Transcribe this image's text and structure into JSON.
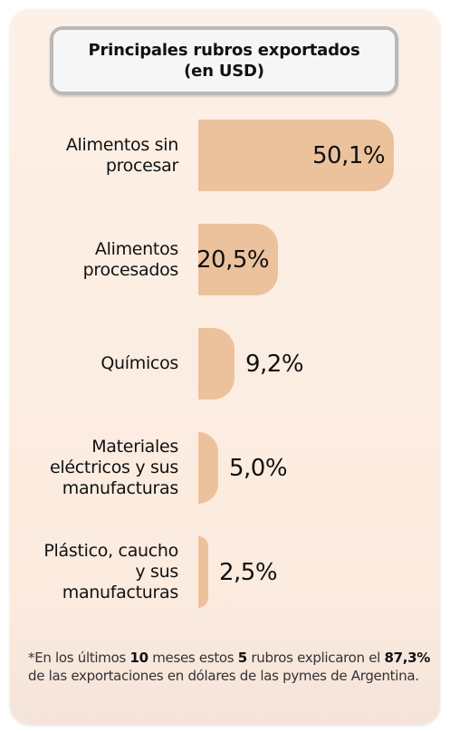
{
  "title": {
    "line1": "Principales rubros exportados",
    "line2": "(en USD)"
  },
  "chart_data": {
    "type": "bar",
    "orientation": "horizontal",
    "categories": [
      [
        "Alimentos sin",
        "procesar"
      ],
      [
        "Alimentos",
        "procesados"
      ],
      [
        "Químicos"
      ],
      [
        "Materiales",
        "eléctricos y sus",
        "manufacturas"
      ],
      [
        "Plástico, caucho",
        "y sus",
        "manufacturas"
      ]
    ],
    "values": [
      50.1,
      20.5,
      9.2,
      5.0,
      2.5
    ],
    "value_labels": [
      "50,1%",
      "20,5%",
      "9,2%",
      "5,0%",
      "2,5%"
    ],
    "value_label_placement": [
      "inside",
      "inside",
      "outside",
      "outside",
      "outside"
    ],
    "unit": "%",
    "xlim": [
      0,
      50.1
    ],
    "grid": false,
    "legend": "none",
    "bar_color": "#ecc29d"
  },
  "footnote": {
    "p1": "*En los últimos ",
    "b1": "10",
    "p2": " meses estos ",
    "b2": "5",
    "p3": " rubros explicaron el ",
    "b3": "87,3%",
    "p4": " de las exportaciones en dólares de las pymes de Argentina."
  }
}
